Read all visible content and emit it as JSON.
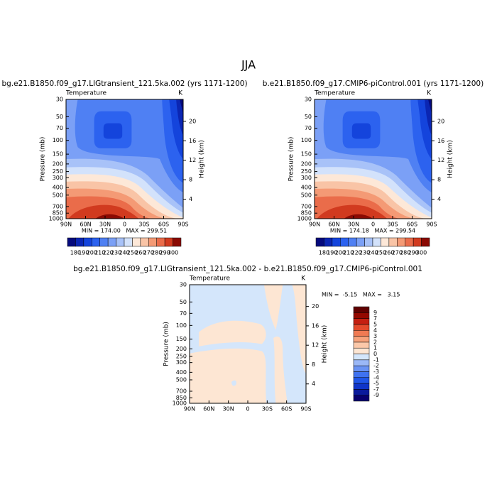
{
  "title": "JJA",
  "chart_data": [
    {
      "type": "contour",
      "title": "bg.e21.B1850.f09_g17.LIGtransient_121.5ka.002 (yrs 1171-1200)",
      "left_label": "Temperature",
      "units": "K",
      "ylabel": "Pressure (mb)",
      "y2label": "Height (km)",
      "xlim": [
        90,
        -90
      ],
      "xticks": [
        {
          "value": 90,
          "label": "90N"
        },
        {
          "value": 60,
          "label": "60N"
        },
        {
          "value": 30,
          "label": "30N"
        },
        0,
        {
          "value": -30,
          "label": "30S"
        },
        {
          "value": -60,
          "label": "60S"
        },
        {
          "value": -90,
          "label": "90S"
        }
      ],
      "ylim": [
        1000,
        30
      ],
      "yscale": "log",
      "yticks": [
        30,
        50,
        70,
        100,
        150,
        200,
        250,
        300,
        400,
        500,
        700,
        850,
        1000
      ],
      "y2lim": [
        0,
        24.5
      ],
      "y2ticks": [
        4,
        8,
        12,
        16,
        20
      ],
      "stats": "MIN = 174.00   MAX = 299.51",
      "colorbar": "bottom",
      "levels": [
        180,
        190,
        200,
        210,
        220,
        230,
        240,
        250,
        260,
        270,
        280,
        290,
        300
      ],
      "colors": [
        "#050a7d",
        "#0b26b3",
        "#1444dc",
        "#2c62ef",
        "#4f80f3",
        "#7ba0f6",
        "#a8c2f8",
        "#d3e2fb",
        "#fde8d8",
        "#f9c4a6",
        "#f49a75",
        "#ea6c4a",
        "#d13a1f",
        "#8b0a03"
      ]
    },
    {
      "type": "contour",
      "title": "b.e21.B1850.f09_g17.CMIP6-piControl.001 (yrs 1171-1200)",
      "left_label": "Temperature",
      "units": "K",
      "ylabel": "Pressure (mb)",
      "y2label": "Height (km)",
      "xlim": [
        90,
        -90
      ],
      "xticks": [
        {
          "value": 90,
          "label": "90N"
        },
        {
          "value": 60,
          "label": "60N"
        },
        {
          "value": 30,
          "label": "30N"
        },
        0,
        {
          "value": -30,
          "label": "30S"
        },
        {
          "value": -60,
          "label": "60S"
        },
        {
          "value": -90,
          "label": "90S"
        }
      ],
      "ylim": [
        1000,
        30
      ],
      "yscale": "log",
      "yticks": [
        30,
        50,
        70,
        100,
        150,
        200,
        250,
        300,
        400,
        500,
        700,
        850,
        1000
      ],
      "y2lim": [
        0,
        24.5
      ],
      "y2ticks": [
        4,
        8,
        12,
        16,
        20
      ],
      "stats": "MIN = 174.18   MAX = 299.54",
      "colorbar": "bottom",
      "levels": [
        180,
        190,
        200,
        210,
        220,
        230,
        240,
        250,
        260,
        270,
        280,
        290,
        300
      ],
      "colors": [
        "#050a7d",
        "#0b26b3",
        "#1444dc",
        "#2c62ef",
        "#4f80f3",
        "#7ba0f6",
        "#a8c2f8",
        "#d3e2fb",
        "#fde8d8",
        "#f9c4a6",
        "#f49a75",
        "#ea6c4a",
        "#d13a1f",
        "#8b0a03"
      ]
    },
    {
      "type": "contour",
      "title": "bg.e21.B1850.f09_g17.LIGtransient_121.5ka.002 - b.e21.B1850.f09_g17.CMIP6-piControl.001",
      "left_label": "Temperature",
      "units": "K",
      "ylabel": "Pressure (mb)",
      "y2label": "Height (km)",
      "xlim": [
        90,
        -90
      ],
      "xticks": [
        {
          "value": 90,
          "label": "90N"
        },
        {
          "value": 60,
          "label": "60N"
        },
        {
          "value": 30,
          "label": "30N"
        },
        0,
        {
          "value": -30,
          "label": "30S"
        },
        {
          "value": -60,
          "label": "60S"
        },
        {
          "value": -90,
          "label": "90S"
        }
      ],
      "ylim": [
        1000,
        30
      ],
      "yscale": "log",
      "yticks": [
        30,
        50,
        70,
        100,
        150,
        200,
        250,
        300,
        400,
        500,
        700,
        850,
        1000
      ],
      "y2lim": [
        0,
        24.5
      ],
      "y2ticks": [
        4,
        8,
        12,
        16,
        20
      ],
      "stats": "MIN =  -5.15   MAX =   3.15",
      "colorbar": "right",
      "levels": [
        -9,
        -7,
        -5,
        -4,
        -3,
        -2,
        -1,
        0,
        1,
        2,
        3,
        4,
        5,
        7,
        9
      ],
      "colors": [
        "#08006e",
        "#0a1a9c",
        "#0f35c9",
        "#1f55e8",
        "#3f72f0",
        "#6a93f4",
        "#9bb8f7",
        "#d4e6fb",
        "#fde6d3",
        "#fbc8a9",
        "#f7a27b",
        "#f07a53",
        "#e34a2c",
        "#c51f11",
        "#930800",
        "#600000"
      ]
    }
  ]
}
